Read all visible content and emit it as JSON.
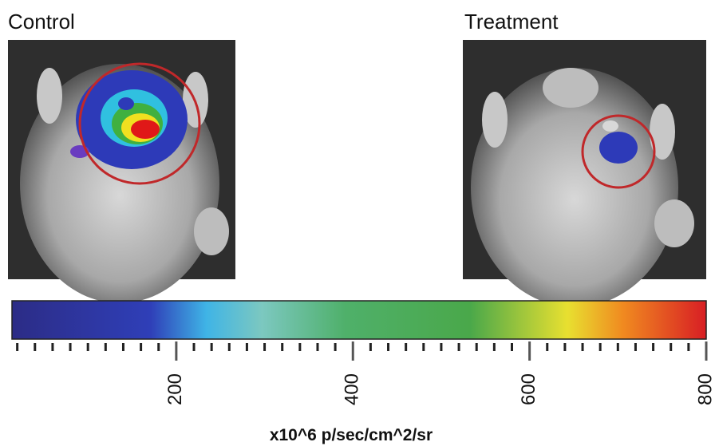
{
  "panels": [
    {
      "title": "Control"
    },
    {
      "title": "Treatment"
    }
  ],
  "colorbar": {
    "label": "x10^6 p/sec/cm^2/sr",
    "lim": [
      14,
      800
    ],
    "ticks": [
      200,
      400,
      600,
      800
    ],
    "minor_ticks": [
      20,
      40,
      60,
      80,
      100,
      120,
      140,
      160,
      180,
      220,
      240,
      260,
      280,
      300,
      320,
      340,
      360,
      380,
      420,
      440,
      460,
      480,
      500,
      520,
      540,
      560,
      580,
      620,
      640,
      660,
      680,
      700,
      720,
      740,
      760,
      780
    ]
  }
}
